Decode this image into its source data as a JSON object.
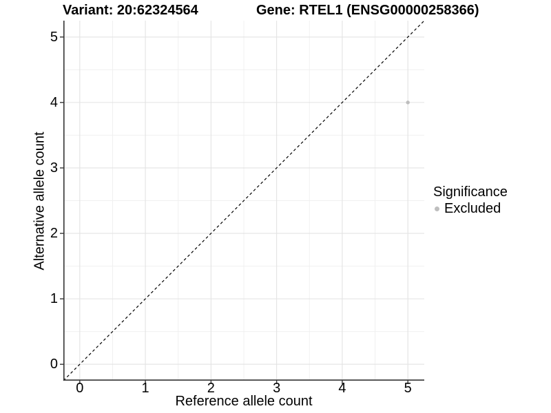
{
  "titles": {
    "variant": "Variant: 20:62324564",
    "gene": "Gene: RTEL1 (ENSG00000258366)"
  },
  "axes": {
    "x": {
      "label": "Reference allele count",
      "tick_labels": [
        "0",
        "1",
        "2",
        "3",
        "4",
        "5"
      ]
    },
    "y": {
      "label": "Alternative allele count",
      "tick_labels": [
        "0",
        "1",
        "2",
        "3",
        "4",
        "5"
      ]
    }
  },
  "legend": {
    "title": "Significance",
    "items": [
      {
        "label": "Excluded",
        "color": "#bebebe"
      }
    ]
  },
  "colors": {
    "background": "#ffffff",
    "axis_line": "#333333",
    "grid_major": "#e3e3e3",
    "grid_minor": "#f0f0f0",
    "reference_line": "#000000",
    "text": "#000000",
    "excluded_point": "#bebebe"
  },
  "chart_data": {
    "type": "scatter",
    "title": "Variant: 20:62324564 | Gene: RTEL1 (ENSG00000258366)",
    "xlabel": "Reference allele count",
    "ylabel": "Alternative allele count",
    "xlim": [
      -0.25,
      5.25
    ],
    "ylim": [
      -0.25,
      5.25
    ],
    "x_ticks": [
      0,
      1,
      2,
      3,
      4,
      5
    ],
    "y_ticks": [
      0,
      1,
      2,
      3,
      4,
      5
    ],
    "grid": {
      "on": true,
      "major": [
        0,
        1,
        2,
        3,
        4,
        5
      ],
      "minor": [
        0.5,
        1.5,
        2.5,
        3.5,
        4.5
      ]
    },
    "reference_line": {
      "type": "identity-diagonal",
      "from": [
        -0.25,
        -0.25
      ],
      "to": [
        5.25,
        5.25
      ],
      "style": "dashed"
    },
    "series": [
      {
        "name": "Excluded",
        "color": "#bebebe",
        "points": [
          {
            "x": 5,
            "y": 4
          }
        ]
      }
    ],
    "legend_position": "right",
    "legend_title": "Significance"
  }
}
